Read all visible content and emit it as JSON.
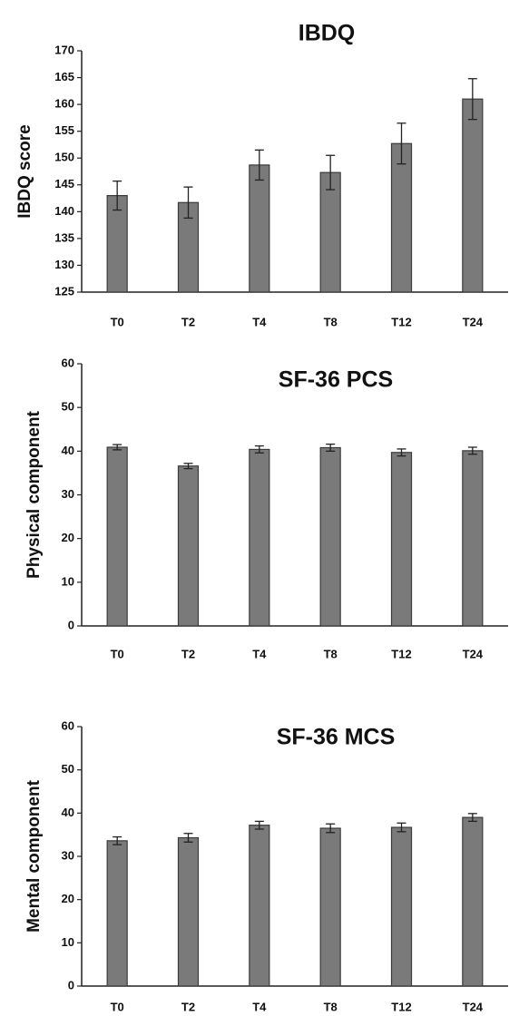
{
  "colors": {
    "bar_fill": "#7a7a7a",
    "bar_stroke": "#3a3a3a",
    "axis": "#222222",
    "error_bar": "#222222",
    "text": "#111111"
  },
  "chart_data": [
    {
      "type": "bar",
      "title": "IBDQ",
      "xlabel": "",
      "ylabel": "IBDQ score",
      "ylim": [
        125,
        170
      ],
      "yticks": [
        125,
        130,
        135,
        140,
        145,
        150,
        155,
        160,
        165,
        170
      ],
      "grid": false,
      "categories": [
        "T0",
        "T2",
        "T4",
        "T8",
        "T12",
        "T24"
      ],
      "values": [
        143,
        141.7,
        148.7,
        147.3,
        152.7,
        161
      ],
      "error": [
        2.7,
        2.9,
        2.8,
        3.2,
        3.8,
        3.8
      ]
    },
    {
      "type": "bar",
      "title": "SF-36 PCS",
      "xlabel": "",
      "ylabel": "Physical component",
      "ylim": [
        0,
        60
      ],
      "yticks": [
        0,
        10,
        20,
        30,
        40,
        50,
        60
      ],
      "grid": false,
      "categories": [
        "T0",
        "T2",
        "T4",
        "T8",
        "T12",
        "T24"
      ],
      "values": [
        40.9,
        36.6,
        40.4,
        40.8,
        39.7,
        40.1
      ],
      "error": [
        0.6,
        0.6,
        0.8,
        0.8,
        0.8,
        0.8
      ]
    },
    {
      "type": "bar",
      "title": "SF-36 MCS",
      "xlabel": "",
      "ylabel": "Mental component",
      "ylim": [
        0,
        60
      ],
      "yticks": [
        0,
        10,
        20,
        30,
        40,
        50,
        60
      ],
      "grid": false,
      "categories": [
        "T0",
        "T2",
        "T4",
        "T8",
        "T12",
        "T24"
      ],
      "values": [
        33.6,
        34.3,
        37.2,
        36.5,
        36.7,
        39
      ],
      "error": [
        0.9,
        1.0,
        0.9,
        1.0,
        1.0,
        0.9
      ]
    }
  ]
}
